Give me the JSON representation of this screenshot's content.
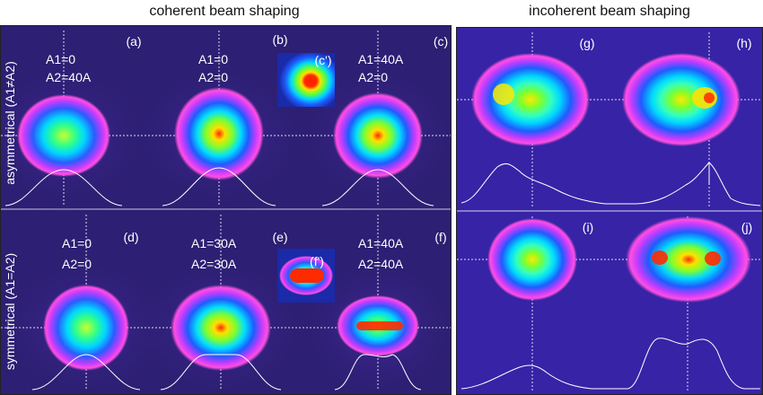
{
  "headings": {
    "coherent": "coherent beam shaping",
    "incoherent": "incoherent beam shaping"
  },
  "row_labels": {
    "asymmetrical": "asymmetrical (A1≠A2)",
    "symmetrical": "symmetrical (A1=A2)"
  },
  "subfigures": {
    "a": "(a)",
    "b": "(b)",
    "c": "(c)",
    "c_prime": "(c')",
    "d": "(d)",
    "e": "(e)",
    "f": "(f)",
    "f_prime": "(f')",
    "g": "(g)",
    "h": "(h)",
    "i": "(i)",
    "j": "(j)"
  },
  "currents": {
    "a": [
      "A1=0",
      "A2=40A"
    ],
    "b": [
      "A1=0",
      "A2=0"
    ],
    "c": [
      "A1=40A",
      "A2=0"
    ],
    "d": [
      "A1=0",
      "A2=0"
    ],
    "e": [
      "A1=30A",
      "A2=30A"
    ],
    "f": [
      "A1=40A",
      "A2=40A"
    ]
  },
  "colors": {
    "background": "#30217a",
    "profile_line": "#ffffff",
    "crosshair": "#ffffff",
    "heading_text": "#111111"
  }
}
